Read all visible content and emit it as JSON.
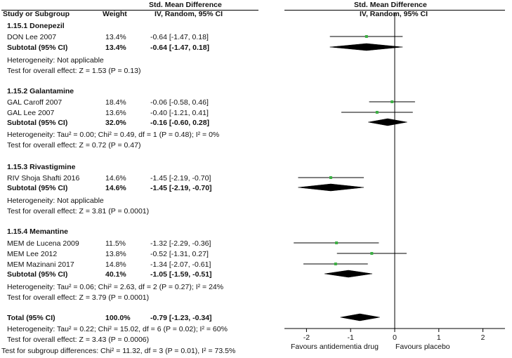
{
  "header": {
    "study_col": "Study or Subgroup",
    "weight_col": "Weight",
    "effect_col_line1": "Std. Mean Difference",
    "effect_col_line2": "IV, Random, 95% CI",
    "plot_col_line1": "Std. Mean Difference",
    "plot_col_line2": "IV, Random, 95% CI"
  },
  "groups": [
    {
      "title": "1.15.1 Donepezil",
      "studies": [
        {
          "name": "DON Lee 2007",
          "weight": "13.4%",
          "ci_text": "-0.64 [-1.47, 0.18]"
        }
      ],
      "subtotal": {
        "label": "Subtotal (95% CI)",
        "weight": "13.4%",
        "ci_text": "-0.64 [-1.47, 0.18]"
      },
      "heterogeneity": "Heterogeneity: Not applicable",
      "overall": "Test for overall effect: Z = 1.53 (P = 0.13)"
    },
    {
      "title": "1.15.2 Galantamine",
      "studies": [
        {
          "name": "GAL Caroff 2007",
          "weight": "18.4%",
          "ci_text": "-0.06 [-0.58, 0.46]"
        },
        {
          "name": "GAL Lee 2007",
          "weight": "13.6%",
          "ci_text": "-0.40 [-1.21, 0.41]"
        }
      ],
      "subtotal": {
        "label": "Subtotal (95% CI)",
        "weight": "32.0%",
        "ci_text": "-0.16 [-0.60, 0.28]"
      },
      "heterogeneity": "Heterogeneity: Tau² = 0.00; Chi² = 0.49, df = 1 (P = 0.48); I² = 0%",
      "overall": "Test for overall effect: Z = 0.72 (P = 0.47)"
    },
    {
      "title": "1.15.3 Rivastigmine",
      "studies": [
        {
          "name": "RIV Shoja Shafti 2016",
          "weight": "14.6%",
          "ci_text": "-1.45 [-2.19, -0.70]"
        }
      ],
      "subtotal": {
        "label": "Subtotal (95% CI)",
        "weight": "14.6%",
        "ci_text": "-1.45 [-2.19, -0.70]"
      },
      "heterogeneity": "Heterogeneity: Not applicable",
      "overall": "Test for overall effect: Z = 3.81 (P = 0.0001)"
    },
    {
      "title": "1.15.4 Memantine",
      "studies": [
        {
          "name": "MEM de Lucena 2009",
          "weight": "11.5%",
          "ci_text": "-1.32 [-2.29, -0.36]"
        },
        {
          "name": "MEM Lee 2012",
          "weight": "13.8%",
          "ci_text": "-0.52 [-1.31, 0.27]"
        },
        {
          "name": "MEM Mazinani 2017",
          "weight": "14.8%",
          "ci_text": "-1.34 [-2.07, -0.61]"
        }
      ],
      "subtotal": {
        "label": "Subtotal (95% CI)",
        "weight": "40.1%",
        "ci_text": "-1.05 [-1.59, -0.51]"
      },
      "heterogeneity": "Heterogeneity: Tau² = 0.06; Chi² = 2.63, df = 2 (P = 0.27); I² = 24%",
      "overall": "Test for overall effect: Z = 3.79 (P = 0.0001)"
    }
  ],
  "total": {
    "label": "Total (95% CI)",
    "weight": "100.0%",
    "ci_text": "-0.79 [-1.23, -0.34]",
    "heterogeneity": "Heterogeneity: Tau² = 0.22; Chi² = 15.02, df = 6 (P = 0.02); I² = 60%",
    "overall": "Test for overall effect: Z = 3.43 (P = 0.0006)",
    "subgroup_diff": "Test for subgroup differences: Chi² = 11.32, df = 3 (P = 0.01), I² = 73.5%"
  },
  "axis": {
    "favours_left": "Favours antidementia drug",
    "favours_right": "Favours placebo"
  },
  "colors": {
    "point": "#3cb043",
    "diamond": "#000000",
    "line": "#000000"
  },
  "chart_data": {
    "type": "forest",
    "xlim": [
      -2.5,
      2.5
    ],
    "ticks": [
      -2,
      -1,
      0,
      1,
      2
    ],
    "tick_labels": [
      "-2",
      "-1",
      "0",
      "1",
      "2"
    ],
    "studies": [
      {
        "name": "DON Lee 2007",
        "est": -0.64,
        "lo": -1.47,
        "hi": 0.18,
        "row": 0
      },
      {
        "name": "GAL Caroff 2007",
        "est": -0.06,
        "lo": -0.58,
        "hi": 0.46,
        "row": 1
      },
      {
        "name": "GAL Lee 2007",
        "est": -0.4,
        "lo": -1.21,
        "hi": 0.41,
        "row": 2
      },
      {
        "name": "RIV Shoja Shafti 2016",
        "est": -1.45,
        "lo": -2.19,
        "hi": -0.7,
        "row": 3
      },
      {
        "name": "MEM de Lucena 2009",
        "est": -1.32,
        "lo": -2.29,
        "hi": -0.36,
        "row": 4
      },
      {
        "name": "MEM Lee 2012",
        "est": -0.52,
        "lo": -1.31,
        "hi": 0.27,
        "row": 5
      },
      {
        "name": "MEM Mazinani 2017",
        "est": -1.34,
        "lo": -2.07,
        "hi": -0.61,
        "row": 6
      }
    ],
    "diamonds": [
      {
        "name": "Donepezil subtotal",
        "est": -0.64,
        "lo": -1.47,
        "hi": 0.18
      },
      {
        "name": "Galantamine subtotal",
        "est": -0.16,
        "lo": -0.6,
        "hi": 0.28
      },
      {
        "name": "Rivastigmine subtotal",
        "est": -1.45,
        "lo": -2.19,
        "hi": -0.7
      },
      {
        "name": "Memantine subtotal",
        "est": -1.05,
        "lo": -1.59,
        "hi": -0.51
      },
      {
        "name": "Total",
        "est": -0.79,
        "lo": -1.23,
        "hi": -0.34
      }
    ]
  }
}
